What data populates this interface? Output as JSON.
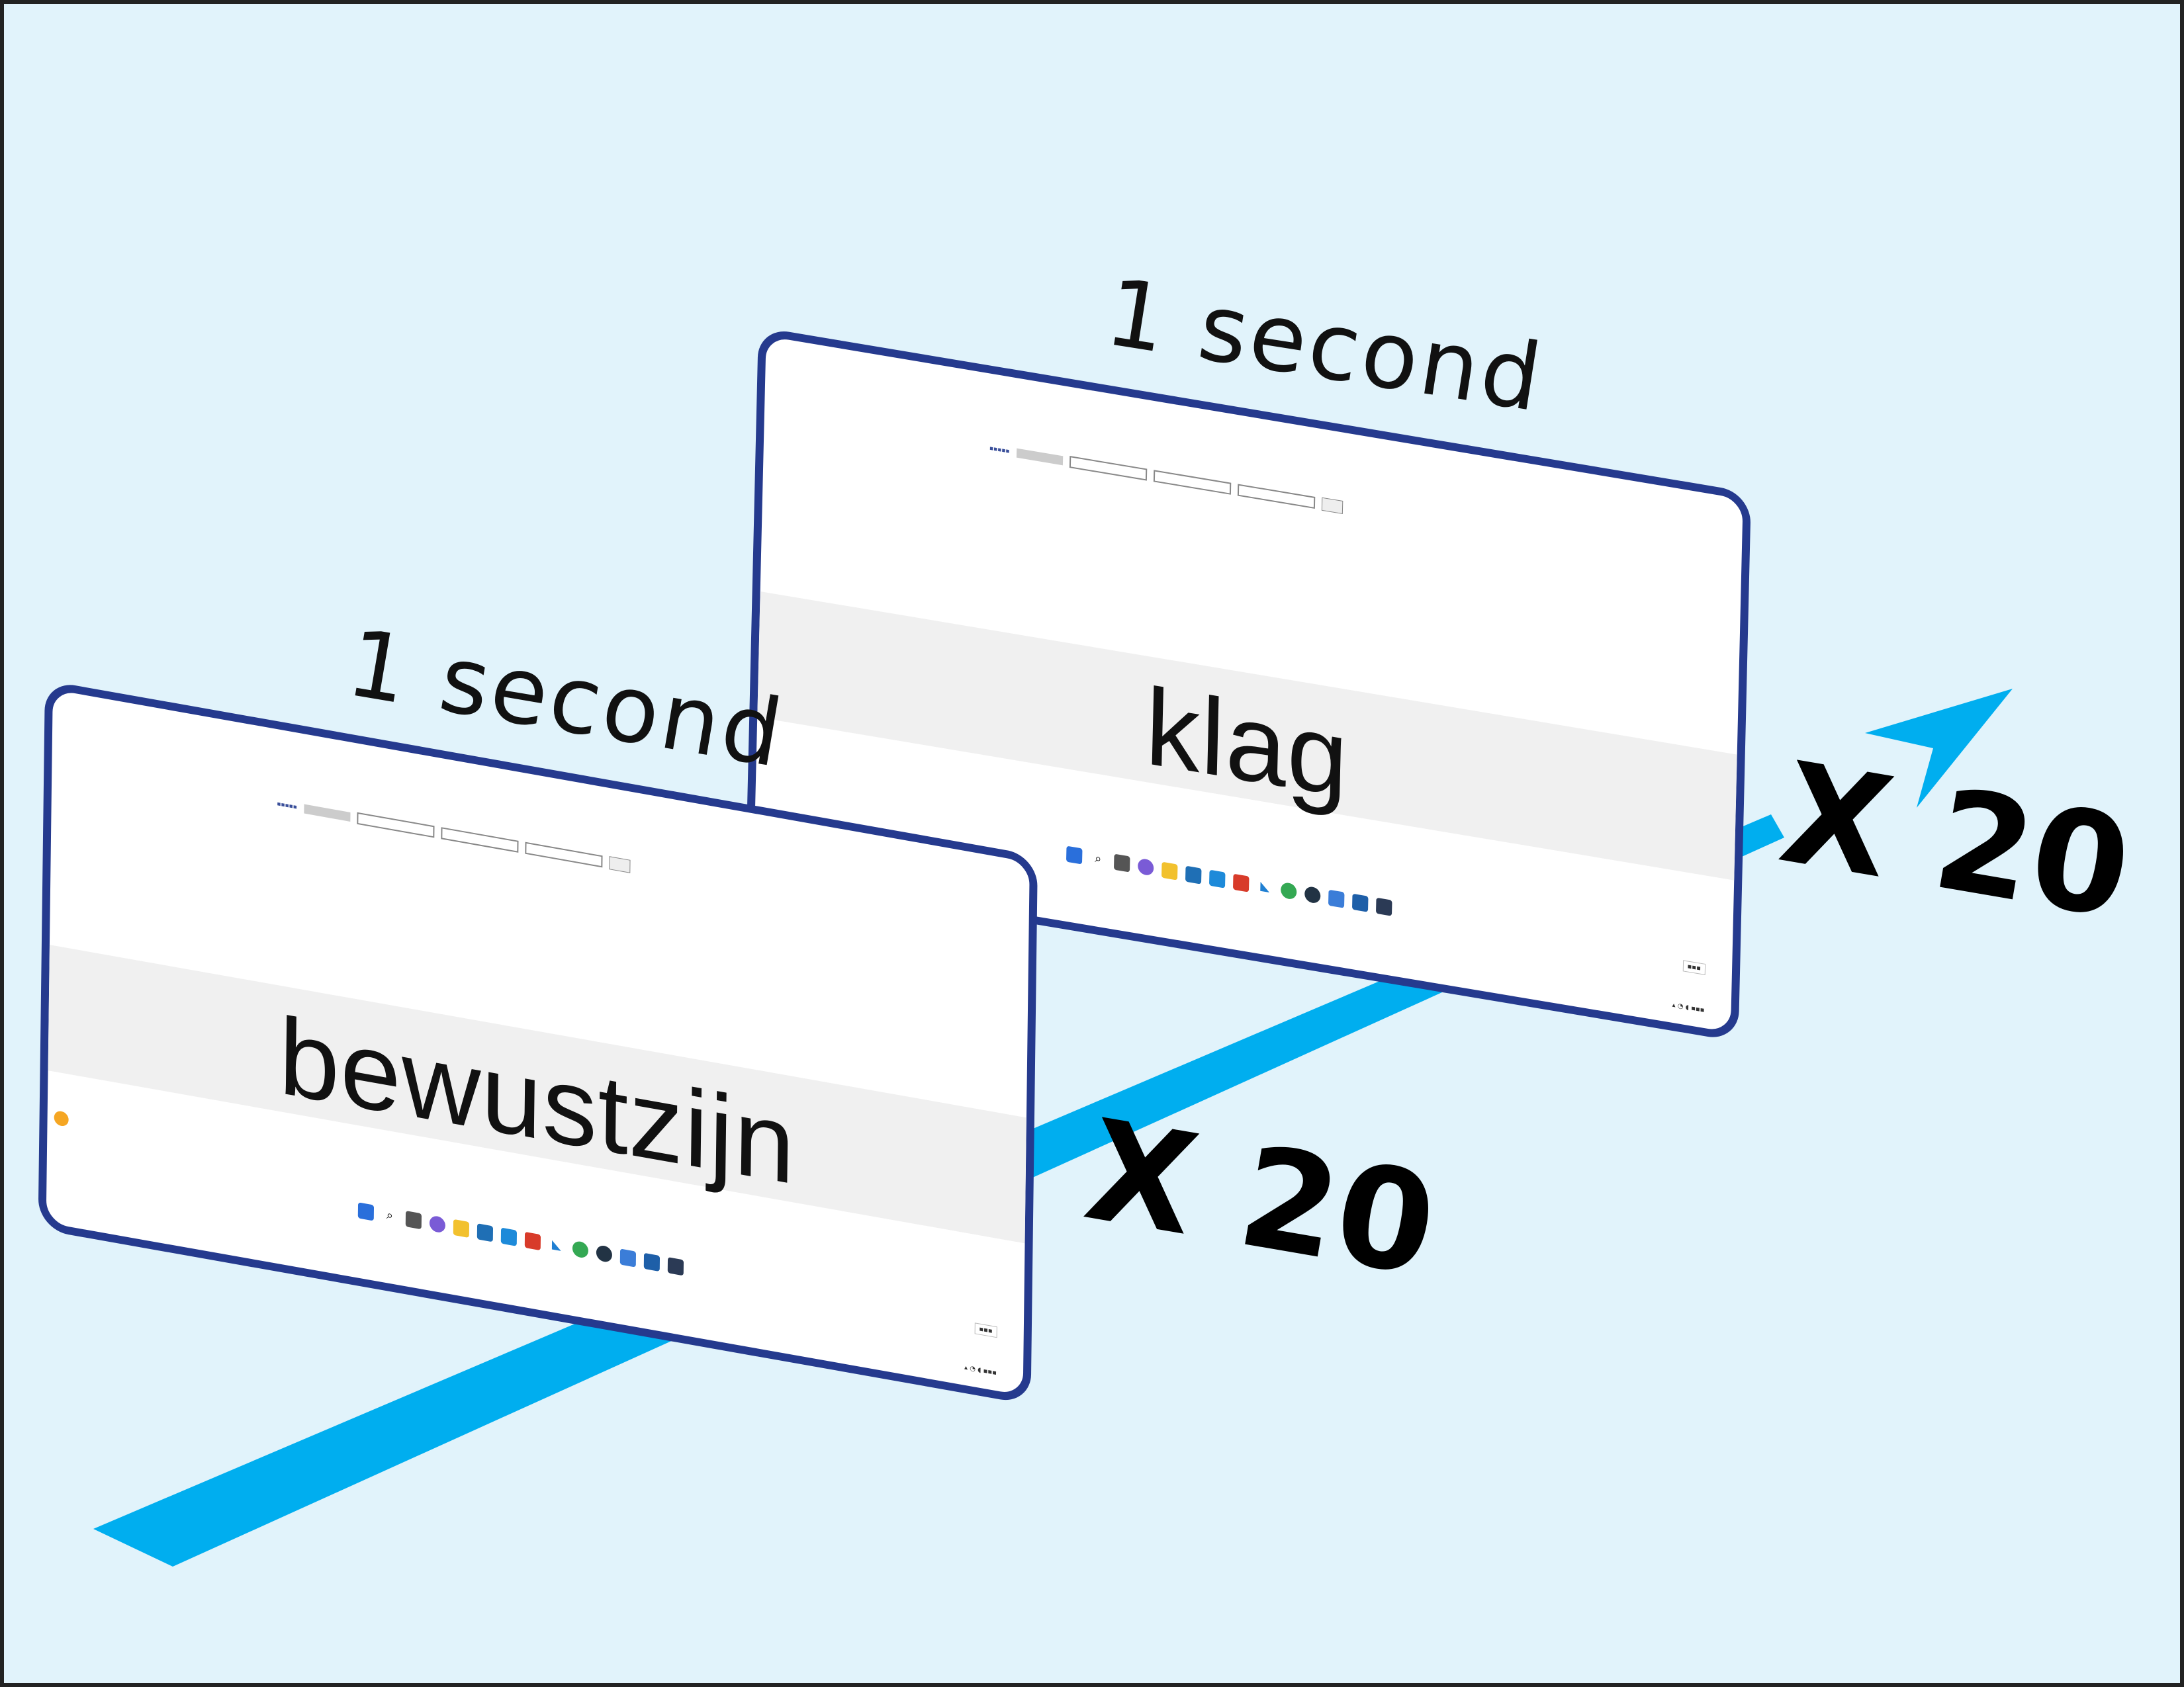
{
  "frames": [
    {
      "word": "klag",
      "duration_label": "1 second",
      "repeat_label": "X 20"
    },
    {
      "word": "bewustzijn",
      "duration_label": "1 second",
      "repeat_label": "X 20"
    }
  ],
  "colors": {
    "background": "#e1f3fb",
    "arrow": "#00aeef",
    "frame_border": "#253a8e",
    "word_band": "#f0f0f0"
  }
}
